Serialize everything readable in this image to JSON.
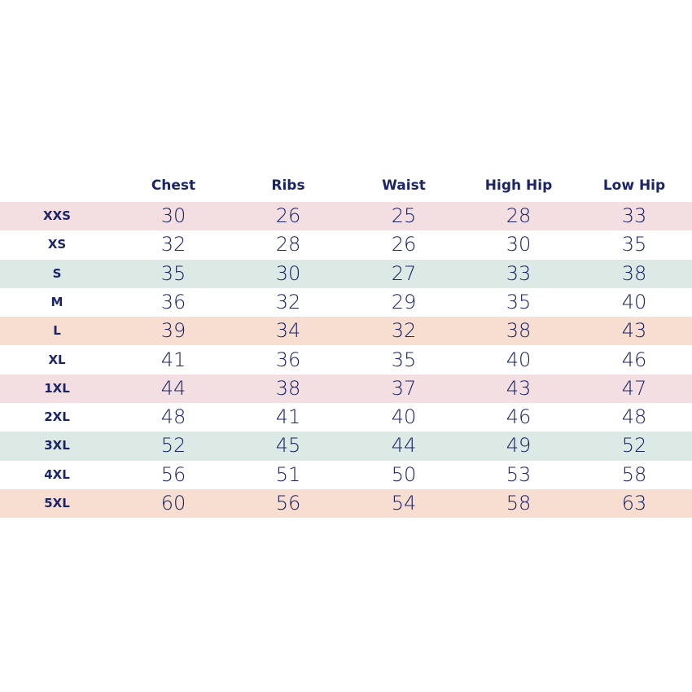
{
  "table": {
    "header": [
      "Chest",
      "Ribs",
      "Waist",
      "High Hip",
      "Low Hip"
    ],
    "rows": [
      [
        "XXS",
        30,
        26,
        25,
        28,
        33
      ],
      [
        "XS",
        32,
        28,
        26,
        30,
        35
      ],
      [
        "S",
        35,
        30,
        27,
        33,
        38
      ],
      [
        "M",
        36,
        32,
        29,
        35,
        40
      ],
      [
        "L",
        39,
        34,
        32,
        38,
        43
      ],
      [
        "XL",
        41,
        36,
        35,
        40,
        46
      ],
      [
        "1XL",
        44,
        38,
        37,
        43,
        47
      ],
      [
        "2XL",
        48,
        41,
        40,
        46,
        48
      ],
      [
        "3XL",
        52,
        45,
        44,
        49,
        52
      ],
      [
        "4XL",
        56,
        51,
        50,
        53,
        58
      ],
      [
        "5XL",
        60,
        56,
        54,
        58,
        63
      ]
    ]
  }
}
